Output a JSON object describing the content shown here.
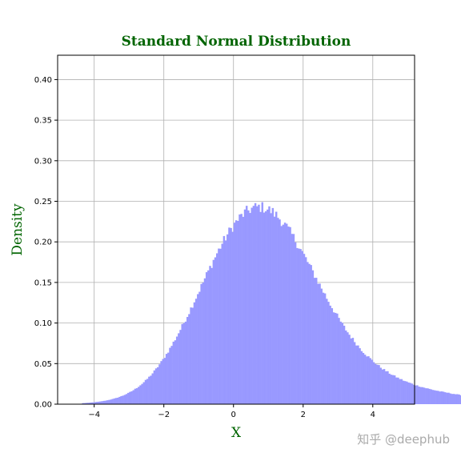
{
  "chart_data": {
    "type": "bar",
    "title": "Standard Normal Distribution",
    "xlabel": "X",
    "ylabel": "Density",
    "xlim": [
      -5.05,
      5.2
    ],
    "ylim": [
      0,
      0.43
    ],
    "x_ticks": [
      -4,
      -2,
      0,
      2,
      4
    ],
    "y_ticks": [
      0.0,
      0.05,
      0.1,
      0.15,
      0.2,
      0.25,
      0.3,
      0.35,
      0.4
    ],
    "y_tick_labels": [
      "0.00",
      "0.05",
      "0.10",
      "0.15",
      "0.20",
      "0.25",
      "0.30",
      "0.35",
      "0.40"
    ],
    "grid": true,
    "bin_width": 0.05,
    "x_start": -4.35,
    "values": [
      0.0013,
      0.0014,
      0.0016,
      0.0017,
      0.0019,
      0.0021,
      0.0023,
      0.0025,
      0.0028,
      0.003,
      0.0033,
      0.0037,
      0.004,
      0.0044,
      0.0048,
      0.0053,
      0.0058,
      0.0063,
      0.0069,
      0.0075,
      0.0082,
      0.009,
      0.0098,
      0.0106,
      0.0116,
      0.0126,
      0.0136,
      0.0148,
      0.016,
      0.0173,
      0.0187,
      0.0202,
      0.0218,
      0.0235,
      0.0252,
      0.0271,
      0.0291,
      0.0312,
      0.0334,
      0.0357,
      0.0381,
      0.0407,
      0.0433,
      0.0461,
      0.049,
      0.052,
      0.0551,
      0.0584,
      0.0617,
      0.0651,
      0.0687,
      0.0723,
      0.0761,
      0.0799,
      0.0839,
      0.0879,
      0.092,
      0.0962,
      0.1004,
      0.1047,
      0.1091,
      0.1135,
      0.118,
      0.1225,
      0.1271,
      0.1317,
      0.1363,
      0.1409,
      0.1455,
      0.1501,
      0.1547,
      0.1593,
      0.1638,
      0.1684,
      0.1728,
      0.1772,
      0.1815,
      0.1858,
      0.1899,
      0.194,
      0.1979,
      0.2017,
      0.2054,
      0.209,
      0.2124,
      0.2157,
      0.2188,
      0.2218,
      0.2246,
      0.2272,
      0.2296,
      0.2319,
      0.2339,
      0.2358,
      0.2374,
      0.2389,
      0.2401,
      0.2411,
      0.2419,
      0.2425,
      0.2428,
      0.243,
      0.2429,
      0.2426,
      0.2421,
      0.2414,
      0.2405,
      0.2394,
      0.2381,
      0.2366,
      0.2348,
      0.2329,
      0.2309,
      0.2286,
      0.2262,
      0.2236,
      0.2209,
      0.2181,
      0.2151,
      0.2119,
      0.2087,
      0.2053,
      0.2018,
      0.1983,
      0.1946,
      0.1909,
      0.1871,
      0.1832,
      0.1793,
      0.1753,
      0.1713,
      0.1673,
      0.1632,
      0.1592,
      0.1551,
      0.151,
      0.147,
      0.1429,
      0.1389,
      0.135,
      0.131,
      0.1271,
      0.1233,
      0.1195,
      0.1158,
      0.1122,
      0.1086,
      0.1051,
      0.1016,
      0.0983,
      0.095,
      0.0918,
      0.0887,
      0.0857,
      0.0828,
      0.0799,
      0.0772,
      0.0745,
      0.0719,
      0.0694,
      0.067,
      0.0646,
      0.0624,
      0.0602,
      0.0581,
      0.0561,
      0.0541,
      0.0522,
      0.0504,
      0.0487,
      0.047,
      0.0454,
      0.0438,
      0.0423,
      0.0409,
      0.0395,
      0.0382,
      0.0369,
      0.0357,
      0.0345,
      0.0334,
      0.0323,
      0.0313,
      0.0303,
      0.0293,
      0.0284,
      0.0275,
      0.0267,
      0.0259,
      0.0251,
      0.0243,
      0.0236,
      0.0229,
      0.0223,
      0.0216,
      0.021,
      0.0204,
      0.0198,
      0.0193,
      0.0187,
      0.0182,
      0.0177,
      0.0172,
      0.0167,
      0.0163,
      0.0158,
      0.0154,
      0.015,
      0.0146,
      0.0142,
      0.0138,
      0.0134,
      0.013,
      0.0127,
      0.0123,
      0.012,
      0.0116,
      0.0113,
      0.011,
      0.0107,
      0.0104,
      0.0101
    ],
    "colors": {
      "bars": "#9999ff",
      "title": "#006400",
      "axis_labels": "#006400",
      "grid": "#b0b0b0"
    }
  },
  "watermark": "知乎 @deephub"
}
